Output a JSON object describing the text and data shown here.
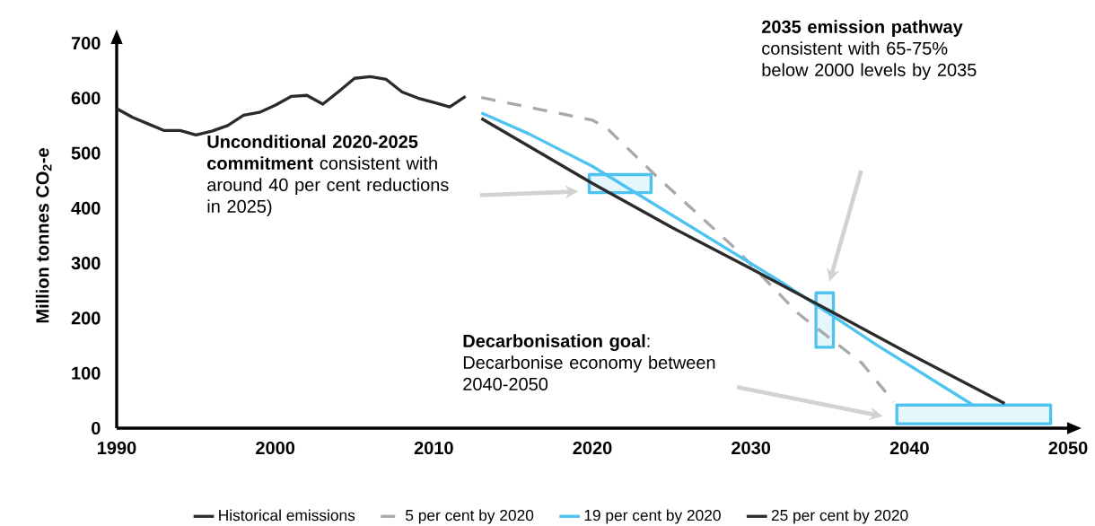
{
  "chart_data": {
    "type": "line",
    "ylabel": "Million tonnes CO$_{2}$-e",
    "xlim": [
      1990,
      2050
    ],
    "ylim": [
      0,
      700
    ],
    "xticks": [
      1990,
      2000,
      2010,
      2020,
      2030,
      2040,
      2050
    ],
    "yticks": [
      0,
      100,
      200,
      300,
      400,
      500,
      600,
      700
    ],
    "legend": "bottom",
    "series": [
      {
        "name": "Historical emissions",
        "color": "#2b2b2b",
        "x": [
          1990,
          1991,
          1992,
          1993,
          1994,
          1995,
          1996,
          1997,
          1998,
          1999,
          2000,
          2001,
          2002,
          2003,
          2004,
          2005,
          2006,
          2007,
          2008,
          2009,
          2010,
          2011,
          2012
        ],
        "values": [
          581,
          565,
          553,
          541,
          541,
          533,
          540,
          550,
          569,
          574,
          587,
          603,
          605,
          589,
          612,
          636,
          639,
          634,
          611,
          600,
          592,
          584,
          603
        ]
      },
      {
        "name": "5 per cent by 2020",
        "color": "#a7a9ac",
        "line_style": "dashed",
        "x": [
          2013,
          2020,
          2021,
          2024,
          2029,
          2033,
          2037,
          2039
        ],
        "values": [
          601,
          560,
          543,
          459,
          327,
          208,
          118,
          48
        ]
      },
      {
        "name": "19 per cent by 2020",
        "color": "#4fc3f0",
        "x": [
          2013,
          2016,
          2020,
          2023,
          2032,
          2038,
          2044
        ],
        "values": [
          573,
          535,
          476,
          423,
          264,
          150,
          42
        ]
      },
      {
        "name": "25 per cent by 2020",
        "color": "#2b2b2b",
        "x": [
          2013,
          2020,
          2025,
          2030,
          2035,
          2040,
          2046
        ],
        "values": [
          563,
          445,
          365,
          290,
          213,
          135,
          45
        ]
      },
      {
        "type": "area",
        "color": "#4fc3f0",
        "x": [
          2019.8,
          2023.7,
          2023.7,
          2019.8
        ],
        "values": [
          428,
          428,
          461,
          461
        ]
      },
      {
        "type": "area",
        "color": "#4fc3f0",
        "x": [
          2034.1,
          2035.2,
          2035.2,
          2034.1
        ],
        "values": [
          147,
          147,
          246,
          246
        ]
      },
      {
        "type": "area",
        "color": "#4fc3f0",
        "x": [
          2039.2,
          2048.9,
          2048.9,
          2039.2
        ],
        "values": [
          8,
          8,
          42,
          42
        ]
      }
    ],
    "annotations": [
      "**Unconditional 2020-2025 commitment** consistent with around 40 per cent reductions in 2025)",
      "**2035 emission pathway** consistent with 65-75% below 2000 levels by 2035",
      "**Decarbonisation goal**: Decarbonise economy between 2040-2050"
    ]
  }
}
